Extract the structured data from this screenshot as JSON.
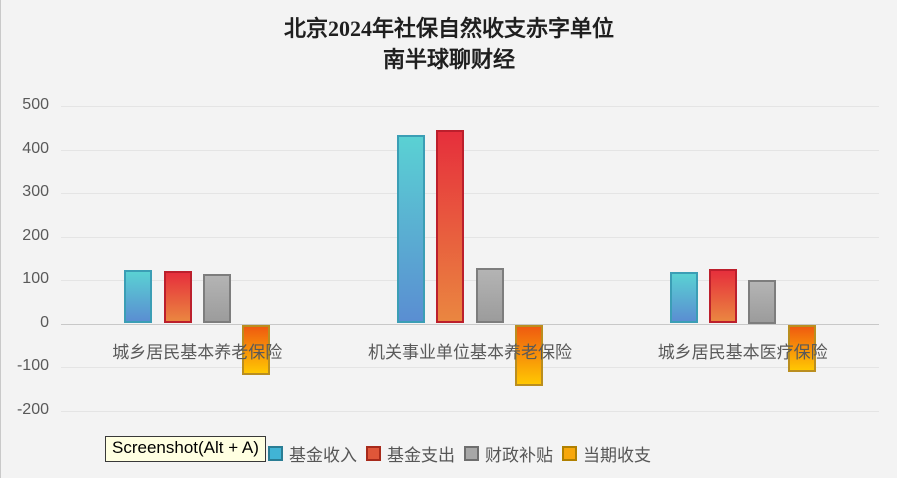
{
  "title": {
    "line1": "北京2024年社保自然收支赤字单位",
    "line2": "南半球聊财经"
  },
  "tooltip": {
    "text": "Screenshot(Alt + A)"
  },
  "chart_data": {
    "type": "bar",
    "title": "北京2024年社保自然收支赤字单位 南半球聊财经",
    "categories": [
      "城乡居民基本养老保险",
      "机关事业单位基本养老保险",
      "城乡居民基本医疗保险"
    ],
    "series": [
      {
        "id": "fund-income",
        "name": "基金收入",
        "values": [
          122,
          433,
          119
        ],
        "color_top": "#5ad1d3",
        "color_bottom": "#5a8ed2",
        "border": "#3b9eb5",
        "legend_fill": "#41b4d5",
        "legend_border": "#2a7d94"
      },
      {
        "id": "fund-expense",
        "name": "基金支出",
        "values": [
          120,
          444,
          126
        ],
        "color_top": "#e62f3c",
        "color_bottom": "#ea8640",
        "border": "#bc1f2c",
        "legend_fill": "#e05639",
        "legend_border": "#a72a1b"
      },
      {
        "id": "fiscal-subsidy",
        "name": "财政补贴",
        "values": [
          114,
          127,
          100
        ],
        "color_top": "#b4b4b4",
        "color_bottom": "#9c9c9c",
        "border": "#7d7d7d",
        "legend_fill": "#a7a7a7",
        "legend_border": "#6e6e6e"
      },
      {
        "id": "current-balance",
        "name": "当期收支",
        "values": [
          -116,
          -141,
          -110
        ],
        "color_top": "#ef5b10",
        "color_bottom": "#ffc702",
        "border": "#ba8e1f",
        "legend_fill": "#f7a70b",
        "legend_border": "#b08000"
      }
    ],
    "xlabel": "",
    "ylabel": "",
    "ylim": [
      -200,
      500
    ],
    "yticks": [
      500,
      400,
      300,
      200,
      100,
      0,
      -100,
      -200
    ],
    "grid": true,
    "legend_position": "bottom"
  }
}
